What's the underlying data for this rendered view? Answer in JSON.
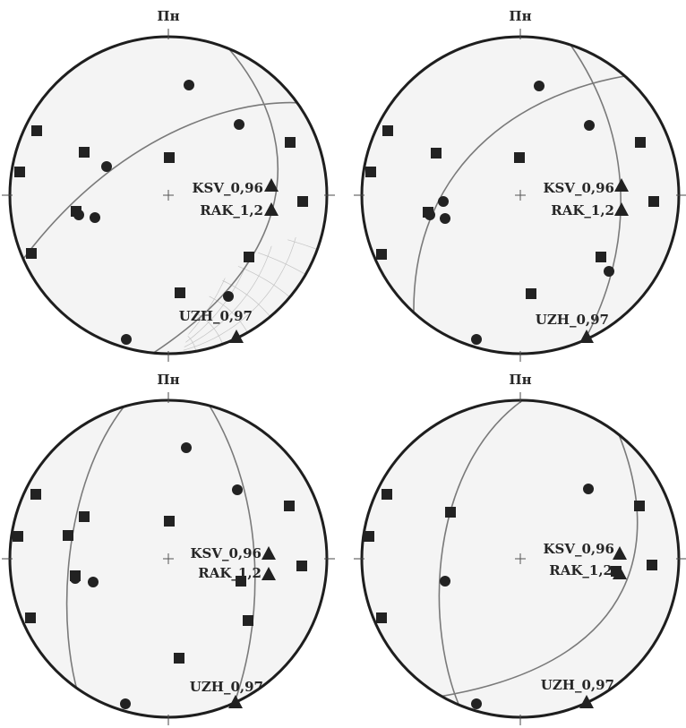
{
  "colors": {
    "background": "#ffffff",
    "net_fill": "#f4f4f4",
    "net_line": "#c4c4c4",
    "outline": "#1e1e1e",
    "plane": "#7a7a7a",
    "marker": "#222222",
    "label": "#262626"
  },
  "marker_shapes": [
    "circle",
    "square",
    "triangle"
  ],
  "north_label": "Пн",
  "panels": [
    {
      "north_label": "Пн",
      "stations": [
        {
          "label": "KSV_0,96"
        },
        {
          "label": "RAK_1,2"
        },
        {
          "label": "UZH_0,97"
        }
      ]
    },
    {
      "north_label": "Пн",
      "stations": [
        {
          "label": "KSV_0,96"
        },
        {
          "label": "RAK_1,2"
        },
        {
          "label": "UZH_0,97"
        }
      ]
    },
    {
      "north_label": "Пн",
      "stations": [
        {
          "label": "KSV_0,96"
        },
        {
          "label": "RAK_1,2"
        },
        {
          "label": "UZH_0,97"
        }
      ]
    },
    {
      "north_label": "Пн",
      "stations": [
        {
          "label": "KSV_0,96"
        },
        {
          "label": "RAK_1,2"
        },
        {
          "label": "UZH_0,97"
        }
      ]
    }
  ]
}
